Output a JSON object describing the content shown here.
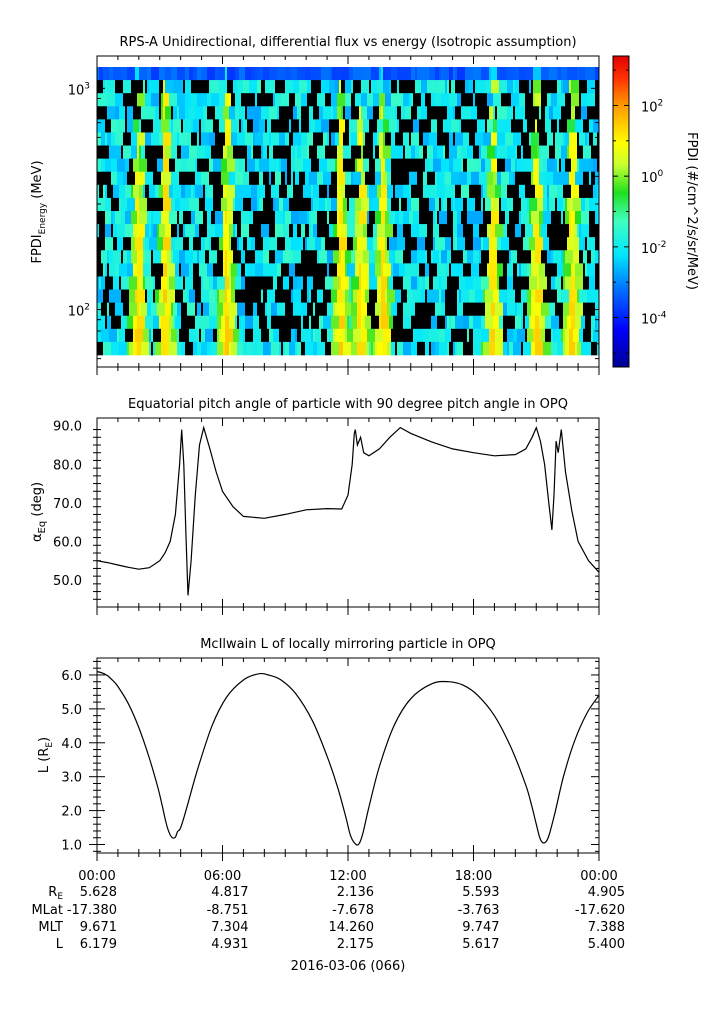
{
  "chart_data": [
    {
      "type": "heatmap",
      "title": "RPS-A Unidirectional, differential flux vs energy (Isotropic assumption)",
      "ylabel_main": "FPDI",
      "ylabel_sub": "Energy",
      "ylabel_unit": " (MeV)",
      "yscale": "log",
      "ylim": [
        55,
        1400
      ],
      "yticks": [
        {
          "value": 100,
          "base": "10",
          "exp": "2"
        },
        {
          "value": 1000,
          "base": "10",
          "exp": "3"
        }
      ],
      "colorbar": {
        "label": "FPDI (#/cm^2/s/sr/MeV)",
        "scale": "log",
        "range_exp": [
          -5.4,
          3.4
        ],
        "ticks": [
          {
            "exp": -4,
            "base": "10",
            "label": "-4"
          },
          {
            "exp": -2,
            "base": "10",
            "label": "-2"
          },
          {
            "exp": 0,
            "base": "10",
            "label": "0"
          },
          {
            "exp": 2,
            "base": "10",
            "label": "2"
          }
        ]
      },
      "bright_band_centers_hours": [
        1.85,
        3.15,
        6.1,
        11.55,
        12.5,
        13.55,
        18.8,
        20.9,
        22.6
      ]
    },
    {
      "type": "line",
      "title": "Equatorial pitch angle of particle with 90 degree pitch angle in OPQ",
      "ylabel_main": "α",
      "ylabel_sub": "Eq",
      "ylabel_unit": " (deg)",
      "ylim": [
        43,
        92
      ],
      "yticks": [
        50,
        60,
        70,
        80,
        90
      ],
      "x_hours": [
        0,
        0.5,
        1.0,
        1.5,
        2.0,
        2.5,
        3.0,
        3.25,
        3.5,
        3.75,
        3.95,
        4.05,
        4.15,
        4.25,
        4.35,
        4.5,
        4.7,
        4.9,
        5.1,
        5.4,
        5.7,
        6.0,
        6.5,
        7.0,
        8.0,
        9.0,
        10.0,
        11.0,
        11.7,
        12.0,
        12.2,
        12.3,
        12.35,
        12.45,
        12.6,
        12.75,
        13.0,
        13.5,
        14.0,
        14.5,
        15.0,
        16.0,
        17.0,
        18.0,
        19.0,
        20.0,
        20.5,
        20.8,
        21.0,
        21.2,
        21.4,
        21.6,
        21.75,
        21.85,
        21.95,
        22.05,
        22.2,
        22.4,
        22.7,
        23.0,
        23.5,
        24.0
      ],
      "y_deg": [
        55,
        54.5,
        53.9,
        53.3,
        52.8,
        53.2,
        55.0,
        57.0,
        60.0,
        67.0,
        80.0,
        89.0,
        80.0,
        62.0,
        46.0,
        55.0,
        72.0,
        85.0,
        89.5,
        84.0,
        78.0,
        73.0,
        69.0,
        66.5,
        66.0,
        67.0,
        68.2,
        68.5,
        68.4,
        72.0,
        80.0,
        88.0,
        89.0,
        85.0,
        87.0,
        83.0,
        82.2,
        84.0,
        87.0,
        89.5,
        88.0,
        85.8,
        84.0,
        83.0,
        82.2,
        82.5,
        84.0,
        87.0,
        89.5,
        86.0,
        80.0,
        70.0,
        63.0,
        72.0,
        86.0,
        83.0,
        89.0,
        78.0,
        68.0,
        60.0,
        55.0,
        52.0
      ]
    },
    {
      "type": "line",
      "title": "McIlwain L of locally mirroring particle in OPQ",
      "ylabel_main": "L (R",
      "ylabel_sub": "E",
      "ylabel_unit": ")",
      "ylim": [
        0.75,
        6.5
      ],
      "yticks": [
        1,
        2,
        3,
        4,
        5,
        6
      ],
      "x_hours": [
        0,
        0.25,
        0.5,
        0.75,
        1.0,
        1.5,
        2.0,
        2.5,
        2.9,
        3.1,
        3.3,
        3.45,
        3.6,
        3.75,
        3.85,
        4.0,
        4.3,
        4.8,
        5.5,
        6.2,
        7.0,
        7.7,
        8.2,
        8.8,
        9.5,
        10.3,
        11.0,
        11.5,
        11.9,
        12.1,
        12.3,
        12.5,
        12.7,
        13.0,
        13.5,
        14.2,
        15.0,
        16.0,
        16.8,
        17.5,
        18.2,
        19.0,
        19.8,
        20.5,
        20.8,
        21.0,
        21.2,
        21.4,
        21.6,
        21.9,
        22.3,
        22.8,
        23.4,
        24.0
      ],
      "L": [
        6.1,
        6.06,
        5.98,
        5.84,
        5.66,
        5.15,
        4.45,
        3.55,
        2.7,
        2.2,
        1.65,
        1.35,
        1.2,
        1.22,
        1.38,
        1.5,
        2.1,
        3.2,
        4.5,
        5.35,
        5.85,
        6.03,
        6.0,
        5.85,
        5.45,
        4.65,
        3.6,
        2.7,
        1.8,
        1.3,
        1.05,
        1.0,
        1.3,
        2.1,
        3.3,
        4.5,
        5.3,
        5.74,
        5.8,
        5.7,
        5.4,
        4.8,
        3.85,
        2.75,
        2.1,
        1.6,
        1.15,
        1.05,
        1.25,
        1.95,
        3.0,
        4.0,
        4.85,
        5.4
      ]
    }
  ],
  "x_axis": {
    "tick_labels": [
      "00:00",
      "06:00",
      "12:00",
      "18:00",
      "00:00"
    ],
    "row_labels": [
      {
        "main": "R",
        "sub": "E"
      },
      {
        "main": "MLat",
        "sub": ""
      },
      {
        "main": "MLT",
        "sub": ""
      },
      {
        "main": "L",
        "sub": ""
      }
    ],
    "rows": [
      [
        "5.628",
        "4.817",
        "2.136",
        "5.593",
        "4.905"
      ],
      [
        "-17.380",
        "-8.751",
        "-7.678",
        "-3.763",
        "-17.620"
      ],
      [
        "9.671",
        "7.304",
        "14.260",
        "9.747",
        "7.388"
      ],
      [
        "6.179",
        "4.931",
        "2.175",
        "5.617",
        "5.400"
      ]
    ],
    "date_label": "2016-03-06 (066)"
  }
}
